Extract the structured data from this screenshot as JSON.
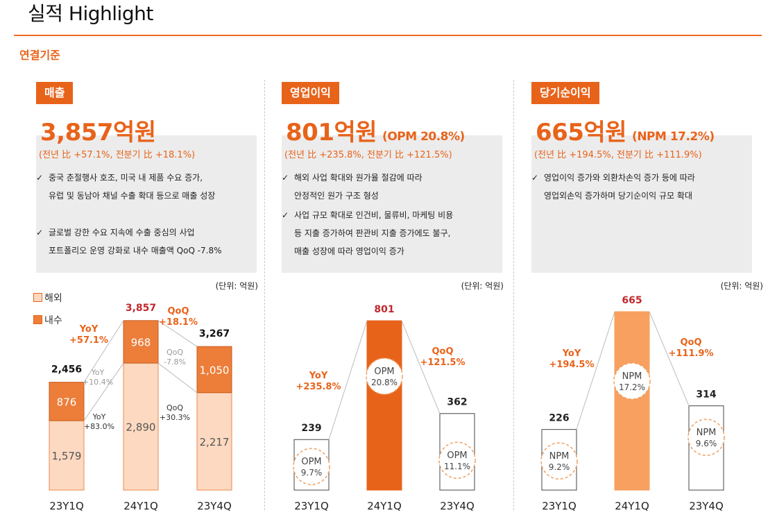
{
  "header": {
    "title": "실적 Highlight",
    "subtitle": "연결기준"
  },
  "colors": {
    "accent": "#e8631a",
    "overseas": "#fcd9c0",
    "domestic": "#ec7e3a",
    "op_bar": "#e8631a",
    "np_bar": "#f7a05f",
    "growth": "#e8631a",
    "growth_grey": "#9a9a9a",
    "value_red": "#c0282d"
  },
  "unit_label": "(단위: 억원)",
  "legend": {
    "overseas": "해외",
    "domestic": "내수"
  },
  "panels": [
    {
      "tag": "매출",
      "headline": "3,857억원",
      "headline_note": "",
      "growth": "(전년 比 +57.1%, 전분기 比 +18.1%)",
      "bullets": [
        {
          "line1": "중국 춘절행사 호조, 미국 내 제품 수요 증가,",
          "line2": "유럽 및 동남아 채널 수출 확대 등으로 매출 성장"
        },
        {
          "line1": "글로벌 강한 수요 지속에 수출 중심의 사업",
          "line2": "포트폴리오 운영 강화로 내수 매출액 QoQ -7.8%"
        }
      ]
    },
    {
      "tag": "영업이익",
      "headline": "801억원",
      "headline_note": "(OPM 20.8%)",
      "growth": "(전년 比 +235.8%, 전분기 比 +121.5%)",
      "bullets": [
        {
          "line1": "해외 사업 확대와 원가율 절감에 따라",
          "line2": "안정적인 원가 구조 형성"
        },
        {
          "line1": "사업 규모 확대로 인건비, 물류비, 마케팅 비용",
          "line2": "등 지출 증가하여 판관비 지출 증가에도 불구,",
          "line3": "매출 성장에 따라 영업이익 증가"
        }
      ]
    },
    {
      "tag": "당기순이익",
      "headline": "665억원",
      "headline_note": "(NPM 17.2%)",
      "growth": "(전년 比 +194.5%, 전분기 比 +111.9%)",
      "bullets": [
        {
          "line1": "영업이익 증가와 외환차손익 증가 등에 따라",
          "line2": "영업외손익 증가하며 당기순이익 규모 확대"
        }
      ]
    }
  ],
  "chart_data": [
    {
      "type": "bar",
      "stacked": true,
      "title": "매출",
      "categories": [
        "23Y1Q",
        "24Y1Q",
        "23Y4Q"
      ],
      "series": [
        {
          "name": "해외",
          "values": [
            1579,
            2890,
            2217
          ],
          "labels": [
            "1,579",
            "2,890",
            "2,217"
          ]
        },
        {
          "name": "내수",
          "values": [
            876,
            968,
            1050
          ],
          "labels": [
            "876",
            "968",
            "1,050"
          ]
        }
      ],
      "totals": [
        2456,
        3857,
        3267
      ],
      "total_labels": [
        "2,456",
        "3,857",
        "3,267"
      ],
      "annotations": {
        "yoy_total": [
          "YoY",
          "+57.1%"
        ],
        "qoq_total": [
          "QoQ",
          "+18.1%"
        ],
        "yoy_domestic": [
          "YoY",
          "+10.4%"
        ],
        "yoy_overseas": [
          "YoY",
          "+83.0%"
        ],
        "qoq_domestic": [
          "QoQ",
          "-7.8%"
        ],
        "qoq_overseas": [
          "QoQ",
          "+30.3%"
        ]
      }
    },
    {
      "type": "bar",
      "title": "영업이익",
      "categories": [
        "23Y1Q",
        "24Y1Q",
        "23Y4Q"
      ],
      "values": [
        239,
        801,
        362
      ],
      "value_labels": [
        "239",
        "801",
        "362"
      ],
      "margin_name": "OPM",
      "margins": [
        "9.7%",
        "20.8%",
        "11.1%"
      ],
      "annotations": {
        "yoy": [
          "YoY",
          "+235.8%"
        ],
        "qoq": [
          "QoQ",
          "+121.5%"
        ]
      }
    },
    {
      "type": "bar",
      "title": "당기순이익",
      "categories": [
        "23Y1Q",
        "24Y1Q",
        "23Y4Q"
      ],
      "values": [
        226,
        665,
        314
      ],
      "value_labels": [
        "226",
        "665",
        "314"
      ],
      "margin_name": "NPM",
      "margins": [
        "9.2%",
        "17.2%",
        "9.6%"
      ],
      "annotations": {
        "yoy": [
          "YoY",
          "+194.5%"
        ],
        "qoq": [
          "QoQ",
          "+111.9%"
        ]
      }
    }
  ]
}
